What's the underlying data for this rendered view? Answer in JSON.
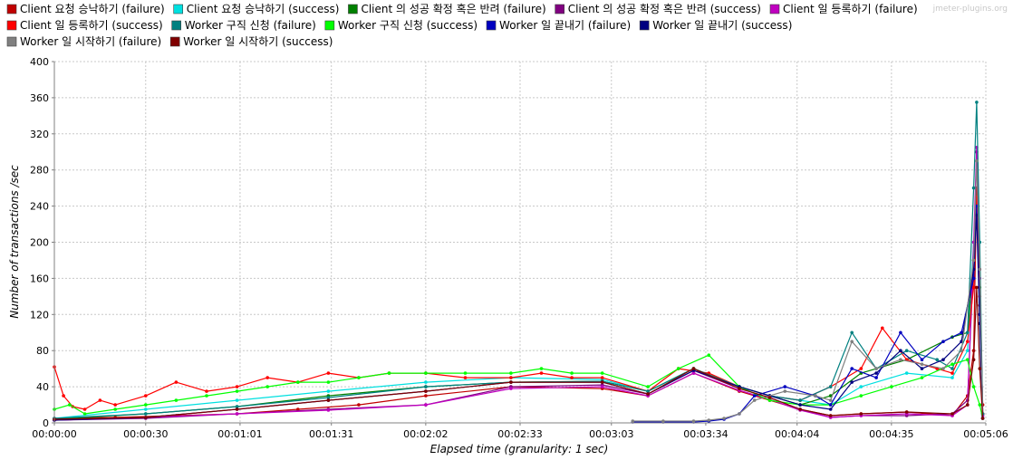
{
  "watermark": "jmeter-plugins.org",
  "chart_data": {
    "type": "line",
    "xlabel": "Elapsed time (granularity: 1 sec)",
    "ylabel": "Number of transactions /sec",
    "x_unit": "seconds elapsed (h:mm:ss)",
    "xlim": [
      0,
      306
    ],
    "ylim": [
      0,
      400
    ],
    "x_ticks": [
      {
        "value": 0,
        "label": "00:00:00"
      },
      {
        "value": 30,
        "label": "00:00:30"
      },
      {
        "value": 61,
        "label": "00:01:01"
      },
      {
        "value": 91,
        "label": "00:01:31"
      },
      {
        "value": 122,
        "label": "00:02:02"
      },
      {
        "value": 153,
        "label": "00:02:33"
      },
      {
        "value": 183,
        "label": "00:03:03"
      },
      {
        "value": 214,
        "label": "00:03:34"
      },
      {
        "value": 244,
        "label": "00:04:04"
      },
      {
        "value": 275,
        "label": "00:04:35"
      },
      {
        "value": 306,
        "label": "00:05:06"
      }
    ],
    "y_ticks": [
      0,
      40,
      80,
      120,
      160,
      200,
      240,
      280,
      320,
      360,
      400
    ],
    "grid": true,
    "legend_position": "top",
    "series": [
      {
        "name": "Client 요청 승낙하기 (failure)",
        "color": "#c00000",
        "points": [
          [
            0,
            5
          ],
          [
            20,
            6
          ],
          [
            40,
            8
          ],
          [
            60,
            10
          ],
          [
            80,
            15
          ],
          [
            100,
            20
          ],
          [
            122,
            30
          ],
          [
            150,
            40
          ],
          [
            180,
            38
          ],
          [
            195,
            30
          ],
          [
            210,
            55
          ],
          [
            225,
            35
          ],
          [
            235,
            25
          ],
          [
            245,
            15
          ],
          [
            255,
            8
          ],
          [
            265,
            10
          ],
          [
            280,
            12
          ],
          [
            295,
            8
          ],
          [
            300,
            30
          ],
          [
            302,
            80
          ],
          [
            303,
            260
          ],
          [
            304,
            130
          ],
          [
            305,
            20
          ]
        ]
      },
      {
        "name": "Client 요청 승낙하기 (success)",
        "color": "#00e0e0",
        "points": [
          [
            0,
            5
          ],
          [
            30,
            15
          ],
          [
            60,
            25
          ],
          [
            90,
            35
          ],
          [
            122,
            45
          ],
          [
            150,
            50
          ],
          [
            180,
            48
          ],
          [
            195,
            35
          ],
          [
            210,
            60
          ],
          [
            225,
            40
          ],
          [
            235,
            30
          ],
          [
            245,
            25
          ],
          [
            255,
            20
          ],
          [
            265,
            40
          ],
          [
            280,
            55
          ],
          [
            295,
            50
          ],
          [
            300,
            80
          ],
          [
            302,
            200
          ],
          [
            303,
            250
          ],
          [
            304,
            120
          ],
          [
            305,
            10
          ]
        ]
      },
      {
        "name": "Client 의 성공 확정 혹은 반려 (failure)",
        "color": "#008000",
        "points": [
          [
            0,
            4
          ],
          [
            30,
            10
          ],
          [
            60,
            18
          ],
          [
            90,
            30
          ],
          [
            122,
            40
          ],
          [
            150,
            45
          ],
          [
            180,
            46
          ],
          [
            195,
            35
          ],
          [
            210,
            60
          ],
          [
            225,
            40
          ],
          [
            235,
            30
          ],
          [
            245,
            20
          ],
          [
            255,
            30
          ],
          [
            265,
            55
          ],
          [
            280,
            70
          ],
          [
            295,
            95
          ],
          [
            300,
            100
          ],
          [
            302,
            180
          ],
          [
            303,
            250
          ],
          [
            304,
            150
          ],
          [
            305,
            5
          ]
        ]
      },
      {
        "name": "Client 의 성공 확정 혹은 반려 (success)",
        "color": "#800080",
        "points": [
          [
            0,
            3
          ],
          [
            30,
            5
          ],
          [
            60,
            10
          ],
          [
            90,
            15
          ],
          [
            122,
            20
          ],
          [
            150,
            40
          ],
          [
            180,
            42
          ],
          [
            195,
            32
          ],
          [
            210,
            58
          ],
          [
            225,
            38
          ],
          [
            235,
            28
          ],
          [
            245,
            15
          ],
          [
            255,
            6
          ],
          [
            265,
            8
          ],
          [
            280,
            8
          ],
          [
            295,
            10
          ],
          [
            300,
            25
          ],
          [
            302,
            180
          ],
          [
            303,
            300
          ],
          [
            304,
            170
          ],
          [
            305,
            10
          ]
        ]
      },
      {
        "name": "Client 일 등록하기 (failure)",
        "color": "#c000c0",
        "points": [
          [
            0,
            3
          ],
          [
            30,
            6
          ],
          [
            60,
            10
          ],
          [
            90,
            14
          ],
          [
            122,
            20
          ],
          [
            150,
            38
          ],
          [
            180,
            40
          ],
          [
            195,
            30
          ],
          [
            210,
            55
          ],
          [
            225,
            36
          ],
          [
            235,
            26
          ],
          [
            245,
            14
          ],
          [
            255,
            6
          ],
          [
            265,
            8
          ],
          [
            280,
            10
          ],
          [
            295,
            8
          ],
          [
            300,
            20
          ],
          [
            302,
            200
          ],
          [
            303,
            305
          ],
          [
            304,
            160
          ],
          [
            305,
            8
          ]
        ]
      },
      {
        "name": "Client 일 등록하기 (success)",
        "color": "#ff0000",
        "points": [
          [
            0,
            62
          ],
          [
            3,
            30
          ],
          [
            6,
            18
          ],
          [
            10,
            15
          ],
          [
            15,
            25
          ],
          [
            20,
            20
          ],
          [
            30,
            30
          ],
          [
            40,
            45
          ],
          [
            50,
            35
          ],
          [
            60,
            40
          ],
          [
            70,
            50
          ],
          [
            80,
            45
          ],
          [
            90,
            55
          ],
          [
            100,
            50
          ],
          [
            110,
            55
          ],
          [
            122,
            55
          ],
          [
            135,
            50
          ],
          [
            150,
            50
          ],
          [
            160,
            55
          ],
          [
            170,
            50
          ],
          [
            180,
            50
          ],
          [
            195,
            35
          ],
          [
            205,
            60
          ],
          [
            215,
            55
          ],
          [
            225,
            40
          ],
          [
            235,
            30
          ],
          [
            245,
            25
          ],
          [
            255,
            40
          ],
          [
            265,
            60
          ],
          [
            272,
            105
          ],
          [
            280,
            70
          ],
          [
            290,
            60
          ],
          [
            295,
            55
          ],
          [
            300,
            90
          ],
          [
            302,
            150
          ],
          [
            303,
            250
          ],
          [
            304,
            140
          ],
          [
            305,
            10
          ]
        ]
      },
      {
        "name": "Worker 구직 신청 (failure)",
        "color": "#008080",
        "points": [
          [
            0,
            5
          ],
          [
            30,
            10
          ],
          [
            60,
            18
          ],
          [
            90,
            28
          ],
          [
            122,
            40
          ],
          [
            150,
            45
          ],
          [
            180,
            46
          ],
          [
            195,
            35
          ],
          [
            210,
            60
          ],
          [
            225,
            40
          ],
          [
            235,
            30
          ],
          [
            245,
            25
          ],
          [
            255,
            40
          ],
          [
            262,
            100
          ],
          [
            270,
            60
          ],
          [
            280,
            80
          ],
          [
            290,
            70
          ],
          [
            295,
            60
          ],
          [
            300,
            100
          ],
          [
            302,
            260
          ],
          [
            303,
            355
          ],
          [
            304,
            200
          ],
          [
            305,
            10
          ]
        ]
      },
      {
        "name": "Worker 구직 신청 (success)",
        "color": "#00ff00",
        "points": [
          [
            0,
            15
          ],
          [
            5,
            20
          ],
          [
            10,
            10
          ],
          [
            20,
            15
          ],
          [
            30,
            20
          ],
          [
            40,
            25
          ],
          [
            50,
            30
          ],
          [
            60,
            35
          ],
          [
            70,
            40
          ],
          [
            80,
            45
          ],
          [
            90,
            45
          ],
          [
            100,
            50
          ],
          [
            110,
            55
          ],
          [
            122,
            55
          ],
          [
            135,
            55
          ],
          [
            150,
            55
          ],
          [
            160,
            60
          ],
          [
            170,
            55
          ],
          [
            180,
            55
          ],
          [
            195,
            40
          ],
          [
            205,
            60
          ],
          [
            215,
            75
          ],
          [
            225,
            40
          ],
          [
            235,
            25
          ],
          [
            245,
            20
          ],
          [
            255,
            20
          ],
          [
            265,
            30
          ],
          [
            275,
            40
          ],
          [
            285,
            50
          ],
          [
            295,
            65
          ],
          [
            300,
            70
          ],
          [
            302,
            40
          ],
          [
            304,
            20
          ],
          [
            305,
            5
          ]
        ]
      },
      {
        "name": "Worker 일 끝내기 (failure)",
        "color": "#0000c0",
        "points": [
          [
            190,
            1
          ],
          [
            200,
            1
          ],
          [
            210,
            1
          ],
          [
            215,
            2
          ],
          [
            220,
            4
          ],
          [
            225,
            10
          ],
          [
            230,
            30
          ],
          [
            240,
            40
          ],
          [
            250,
            30
          ],
          [
            255,
            20
          ],
          [
            262,
            60
          ],
          [
            270,
            50
          ],
          [
            278,
            100
          ],
          [
            285,
            70
          ],
          [
            292,
            90
          ],
          [
            298,
            100
          ],
          [
            302,
            160
          ],
          [
            303,
            240
          ],
          [
            304,
            120
          ],
          [
            305,
            5
          ]
        ]
      },
      {
        "name": "Worker 일 끝내기 (success)",
        "color": "#000080",
        "points": [
          [
            0,
            3
          ],
          [
            30,
            6
          ],
          [
            60,
            15
          ],
          [
            90,
            25
          ],
          [
            122,
            35
          ],
          [
            150,
            45
          ],
          [
            180,
            45
          ],
          [
            195,
            32
          ],
          [
            210,
            58
          ],
          [
            225,
            40
          ],
          [
            235,
            30
          ],
          [
            245,
            20
          ],
          [
            255,
            15
          ],
          [
            262,
            45
          ],
          [
            270,
            55
          ],
          [
            278,
            80
          ],
          [
            285,
            60
          ],
          [
            292,
            70
          ],
          [
            298,
            90
          ],
          [
            302,
            170
          ],
          [
            303,
            230
          ],
          [
            304,
            110
          ],
          [
            305,
            5
          ]
        ]
      },
      {
        "name": "Worker 일 시작하기 (failure)",
        "color": "#808080",
        "points": [
          [
            190,
            2
          ],
          [
            200,
            2
          ],
          [
            210,
            2
          ],
          [
            215,
            3
          ],
          [
            220,
            5
          ],
          [
            225,
            10
          ],
          [
            230,
            25
          ],
          [
            240,
            35
          ],
          [
            250,
            30
          ],
          [
            255,
            25
          ],
          [
            262,
            90
          ],
          [
            270,
            60
          ],
          [
            278,
            70
          ],
          [
            285,
            65
          ],
          [
            292,
            60
          ],
          [
            298,
            80
          ],
          [
            302,
            180
          ],
          [
            303,
            290
          ],
          [
            304,
            170
          ],
          [
            305,
            5
          ]
        ]
      },
      {
        "name": "Worker 일 시작하기 (success)",
        "color": "#800000",
        "points": [
          [
            0,
            4
          ],
          [
            30,
            6
          ],
          [
            60,
            15
          ],
          [
            90,
            25
          ],
          [
            122,
            35
          ],
          [
            150,
            45
          ],
          [
            180,
            45
          ],
          [
            195,
            32
          ],
          [
            210,
            60
          ],
          [
            225,
            38
          ],
          [
            235,
            28
          ],
          [
            245,
            15
          ],
          [
            255,
            8
          ],
          [
            265,
            10
          ],
          [
            280,
            12
          ],
          [
            295,
            10
          ],
          [
            300,
            20
          ],
          [
            302,
            70
          ],
          [
            303,
            150
          ],
          [
            304,
            60
          ],
          [
            305,
            5
          ]
        ]
      }
    ]
  }
}
